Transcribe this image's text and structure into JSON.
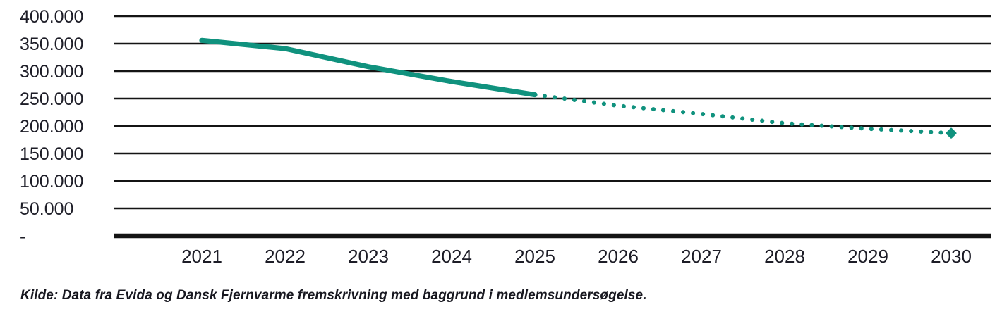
{
  "chart": {
    "source_note": "Kilde: Data fra Evida og Dansk Fjernvarme fremskrivning med baggrund i medlemsundersøgelse."
  },
  "chart_data": {
    "type": "line",
    "title": "",
    "xlabel": "",
    "ylabel": "",
    "x": [
      2021,
      2022,
      2023,
      2024,
      2025,
      2026,
      2027,
      2028,
      2029,
      2030
    ],
    "xtick_labels": [
      "2021",
      "2022",
      "2023",
      "2024",
      "2025",
      "2026",
      "2027",
      "2028",
      "2029",
      "2030"
    ],
    "series": [
      {
        "name": "solid",
        "style": "solid",
        "x": [
          2021,
          2022,
          2023,
          2024,
          2025
        ],
        "values": [
          356000,
          341000,
          308000,
          281000,
          257000
        ]
      },
      {
        "name": "dotted",
        "style": "dotted",
        "x": [
          2025,
          2026,
          2027,
          2028,
          2029,
          2030
        ],
        "values": [
          257000,
          237000,
          222000,
          205000,
          195000,
          187000
        ]
      }
    ],
    "ylim": [
      0,
      400000
    ],
    "yticks": [
      0,
      50000,
      100000,
      150000,
      200000,
      250000,
      300000,
      350000,
      400000
    ],
    "ytick_labels": [
      "-",
      "50.000",
      "100.000",
      "150.000",
      "200.000",
      "250.000",
      "300.000",
      "350.000",
      "400.000"
    ],
    "grid": "horizontal",
    "legend": "none",
    "line_color": "#10927E",
    "axis_color": "#141414",
    "text_color": "#1d1d27",
    "end_marker": "diamond"
  }
}
